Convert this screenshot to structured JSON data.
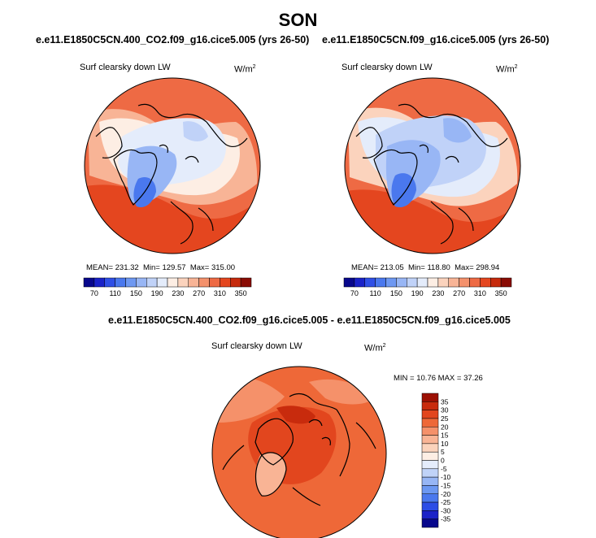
{
  "main_title": "SON",
  "panels": [
    {
      "title": "e.e11.E1850C5CN.400_CO2.f09_g16.cice5.005 (yrs 26-50)",
      "variable": "Surf clearsky down LW",
      "units": "W/m",
      "units_exp": "2",
      "stats": {
        "mean": "MEAN= 231.32",
        "min": "Min= 129.57",
        "max": "Max= 315.00"
      }
    },
    {
      "title": "e.e11.E1850C5CN.f09_g16.cice5.005 (yrs 26-50)",
      "variable": "Surf clearsky down LW",
      "units": "W/m",
      "units_exp": "2",
      "stats": {
        "mean": "MEAN= 213.05",
        "min": "Min= 118.80",
        "max": "Max= 298.94"
      }
    },
    {
      "title": "e.e11.E1850C5CN.400_CO2.f09_g16.cice5.005 - e.e11.E1850C5CN.f09_g16.cice5.005",
      "variable": "Surf clearsky down LW",
      "units": "W/m",
      "units_exp": "2",
      "stats": {
        "minmax": "MIN = 10.76 MAX = 37.26"
      }
    }
  ],
  "colorbar_abs": {
    "tick_labels": [
      "70",
      "110",
      "150",
      "190",
      "230",
      "270",
      "310",
      "350"
    ],
    "colors": [
      "#08088c",
      "#1a22c8",
      "#2f4fe6",
      "#4a78ee",
      "#6e98f2",
      "#98b6f5",
      "#c0d2f8",
      "#e4ecfb",
      "#fdeee4",
      "#fbd3bd",
      "#f8b496",
      "#f4916c",
      "#ee6a44",
      "#e4461f",
      "#c62a0c",
      "#8a0c04"
    ]
  },
  "colorbar_diff": {
    "tick_labels": [
      "35",
      "30",
      "25",
      "20",
      "15",
      "10",
      "5",
      "0",
      "-5",
      "-10",
      "-15",
      "-20",
      "-25",
      "-30",
      "-35"
    ],
    "colors": [
      "#9c1003",
      "#c82b0d",
      "#e2461e",
      "#ee6838",
      "#f5916a",
      "#f9b495",
      "#fbd3bc",
      "#fdeee4",
      "#e5edfb",
      "#c0d3f8",
      "#97b6f5",
      "#6c98f2",
      "#4a78ee",
      "#2c4de6",
      "#1b22c7",
      "#08088c"
    ]
  },
  "chart_data": [
    {
      "type": "heatmap",
      "title": "e.e11.E1850C5CN.400_CO2.f09_g16.cice5.005 (yrs 26-50)",
      "season": "SON",
      "variable": "Surf clearsky down LW",
      "units": "W/m2",
      "projection": "polar stereographic (Arctic)",
      "mean": 231.32,
      "min": 129.57,
      "max": 315.0,
      "contour_levels": [
        70,
        90,
        110,
        130,
        150,
        170,
        190,
        210,
        230,
        250,
        270,
        290,
        310,
        330,
        350
      ],
      "colorbar_ticks": [
        70,
        110,
        150,
        190,
        230,
        270,
        310,
        350
      ]
    },
    {
      "type": "heatmap",
      "title": "e.e11.E1850C5CN.f09_g16.cice5.005 (yrs 26-50)",
      "season": "SON",
      "variable": "Surf clearsky down LW",
      "units": "W/m2",
      "projection": "polar stereographic (Arctic)",
      "mean": 213.05,
      "min": 118.8,
      "max": 298.94,
      "contour_levels": [
        70,
        90,
        110,
        130,
        150,
        170,
        190,
        210,
        230,
        250,
        270,
        290,
        310,
        330,
        350
      ],
      "colorbar_ticks": [
        70,
        110,
        150,
        190,
        230,
        270,
        310,
        350
      ]
    },
    {
      "type": "heatmap",
      "title": "e.e11.E1850C5CN.400_CO2.f09_g16.cice5.005 - e.e11.E1850C5CN.f09_g16.cice5.005",
      "season": "SON",
      "variable": "Surf clearsky down LW",
      "units": "W/m2",
      "projection": "polar stereographic (Arctic)",
      "min": 10.76,
      "max": 37.26,
      "contour_levels": [
        -35,
        -30,
        -25,
        -20,
        -15,
        -10,
        -5,
        0,
        5,
        10,
        15,
        20,
        25,
        30,
        35
      ],
      "colorbar_ticks": [
        35,
        30,
        25,
        20,
        15,
        10,
        5,
        0,
        -5,
        -10,
        -15,
        -20,
        -25,
        -30,
        -35
      ]
    }
  ]
}
